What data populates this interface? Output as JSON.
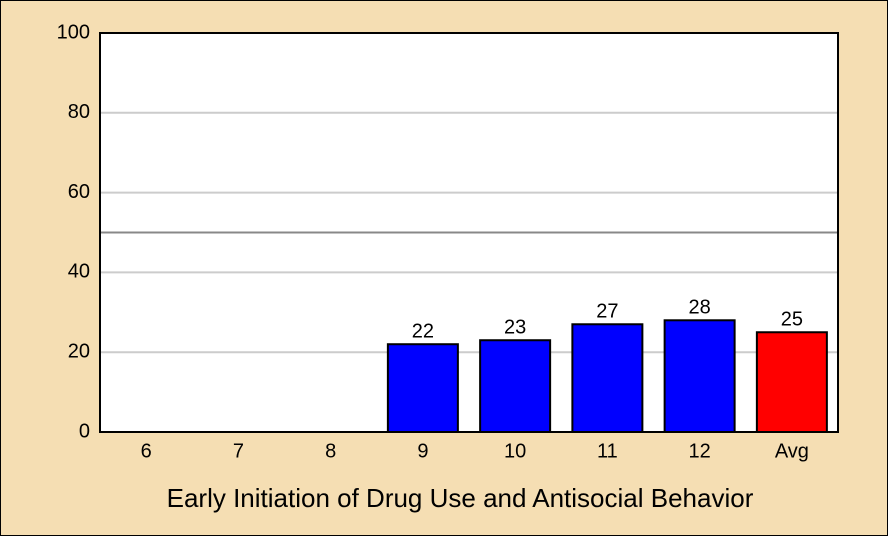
{
  "chart_data": {
    "type": "bar",
    "title": "Early Initiation of Drug Use and Antisocial Behavior",
    "categories": [
      "6",
      "7",
      "8",
      "9",
      "10",
      "11",
      "12",
      "Avg"
    ],
    "values": [
      null,
      null,
      null,
      22,
      23,
      27,
      28,
      25
    ],
    "colors": [
      null,
      null,
      null,
      "#0000ff",
      "#0000ff",
      "#0000ff",
      "#0000ff",
      "#ff0000"
    ],
    "ylim": [
      0,
      100
    ],
    "yticks": [
      0,
      20,
      40,
      60,
      80,
      100
    ],
    "grid": true,
    "reference_line": 50
  }
}
